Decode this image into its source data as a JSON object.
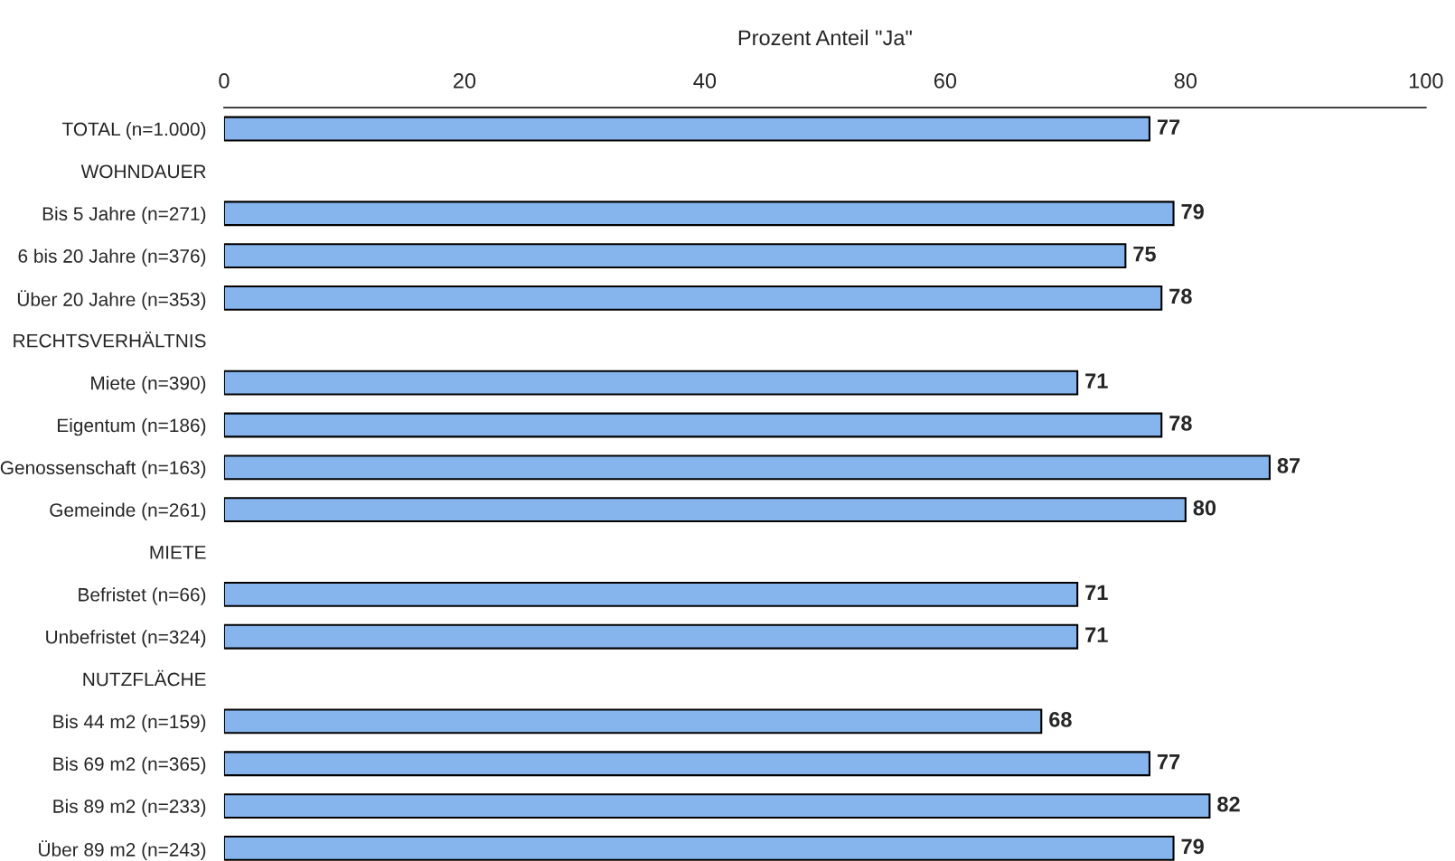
{
  "chart_data": {
    "type": "bar",
    "orientation": "horizontal",
    "xlabel": "Prozent Anteil \"Ja\"",
    "categories": [
      "TOTAL (n=1.000)",
      "WOHNDAUER",
      "Bis 5 Jahre (n=271)",
      "6 bis 20 Jahre (n=376)",
      "Über 20 Jahre (n=353)",
      "RECHTSVERHÄLTNIS",
      "Miete (n=390)",
      "Eigentum (n=186)",
      "Genossenschaft (n=163)",
      "Gemeinde (n=261)",
      "MIETE",
      "Befristet (n=66)",
      "Unbefristet (n=324)",
      "NUTZFLÄCHE",
      "Bis 44 m2 (n=159)",
      "Bis 69 m2 (n=365)",
      "Bis 89 m2 (n=233)",
      "Über 89 m2 (n=243)"
    ],
    "values": [
      77,
      null,
      79,
      75,
      78,
      null,
      71,
      78,
      87,
      80,
      null,
      71,
      71,
      null,
      68,
      77,
      82,
      79
    ],
    "color": "#86b4ec",
    "xlim": [
      0,
      100
    ],
    "xticks": [
      0,
      20,
      40,
      60,
      80,
      100
    ],
    "data_labels": true,
    "grid": false,
    "legend": false
  }
}
